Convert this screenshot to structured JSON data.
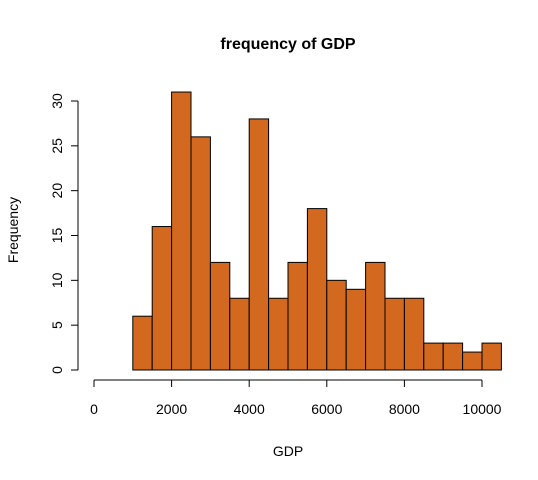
{
  "chart_data": {
    "type": "bar",
    "title": "frequency of GDP",
    "xlabel": "GDP",
    "ylabel": "Frequency",
    "bin_edges": [
      1000,
      1500,
      2000,
      2500,
      3000,
      3500,
      4000,
      4500,
      5000,
      5500,
      6000,
      6500,
      7000,
      7500,
      8000,
      8500,
      9000,
      9500,
      10000,
      10500
    ],
    "values": [
      6,
      16,
      31,
      26,
      12,
      8,
      28,
      8,
      12,
      18,
      10,
      9,
      12,
      8,
      8,
      3,
      3,
      2,
      3
    ],
    "xlim": [
      0,
      10500
    ],
    "ylim": [
      0,
      32
    ],
    "xticks": [
      0,
      2000,
      4000,
      6000,
      8000,
      10000
    ],
    "yticks": [
      0,
      5,
      10,
      15,
      20,
      25,
      30
    ],
    "xtick_labels": [
      "0",
      "2000",
      "4000",
      "6000",
      "8000",
      "10000"
    ],
    "ytick_labels": [
      "0",
      "5",
      "10",
      "15",
      "20",
      "25",
      "30"
    ],
    "bar_color": "#D2691E",
    "grid": false,
    "legend": "none"
  }
}
